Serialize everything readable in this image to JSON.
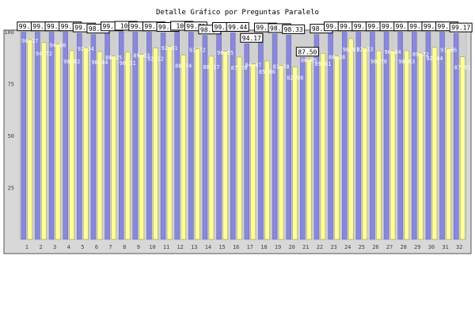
{
  "chart_data": {
    "type": "bar",
    "title": "Detalle Gráfico por Preguntas Paralelo",
    "xlabel": "",
    "ylabel": "",
    "ylim": [
      0,
      100
    ],
    "yticks": [
      25,
      50,
      75,
      100
    ],
    "grid": false,
    "categories": [
      "1",
      "2",
      "3",
      "4",
      "5",
      "6",
      "7",
      "8",
      "9",
      "10",
      "11",
      "12",
      "13",
      "14",
      "15",
      "16",
      "17",
      "18",
      "19",
      "20",
      "21",
      "22",
      "23",
      "24",
      "25",
      "26",
      "27",
      "28",
      "29",
      "30",
      "31",
      "32"
    ],
    "series": [
      {
        "values": [
          99.72,
          99.72,
          99.72,
          99.72,
          99.17,
          98.61,
          99.72,
          100,
          99.72,
          99.72,
          99.44,
          100,
          99.72,
          98.17,
          99.44,
          99.44,
          94.17,
          99.17,
          98.89,
          98.33,
          87.5,
          98.61,
          99.72,
          99.72,
          99.72,
          99.72,
          99.72,
          99.72,
          99.72,
          99.72,
          99.72,
          99.17
        ],
        "labels": [
          "99.72",
          "99.72",
          "99.72",
          "99.72",
          "99.17",
          "98.61",
          "99.72",
          "100",
          "99.72",
          "99.72",
          "99.44",
          "100",
          "99.72",
          "98.17",
          "99.44",
          "99.44",
          "94.17",
          "99.17",
          "98.89",
          "98.33",
          "87.50",
          "98.61",
          "99.72",
          "99.72",
          "99.72",
          "99.72",
          "99.72",
          "99.72",
          "99.72",
          "99.72",
          "99.72",
          "99.17"
        ],
        "color": "#8888dd"
      },
      {
        "values": [
          96.17,
          94.72,
          94.06,
          90.82,
          92.34,
          90.44,
          88.25,
          90.11,
          89.03,
          92.12,
          92.81,
          88.74,
          91.72,
          88.17,
          90.55,
          87.78,
          84.47,
          85.86,
          83.78,
          82.98,
          86.85,
          89.61,
          88.28,
          96.61,
          92.23,
          90.78,
          90.84,
          90.83,
          89.72,
          92.44,
          91.86,
          87.91
        ],
        "labels": [
          "96.17",
          "94.72",
          "94.06",
          "90.82",
          "92.34",
          "90.44",
          "88.25",
          "90.11",
          "89.03",
          "92.12",
          "92.81",
          "88.74",
          "91.72",
          "88.17",
          "90.55",
          "87.78",
          "84.47",
          "85.86",
          "83.78",
          "82.98",
          "86.85",
          "89.61",
          "88.28",
          "96.61",
          "92.23",
          "90.78",
          "90.84",
          "90.83",
          "89.72",
          "92.44",
          "91.86",
          "87.91"
        ],
        "color": "#ffff99"
      }
    ]
  }
}
